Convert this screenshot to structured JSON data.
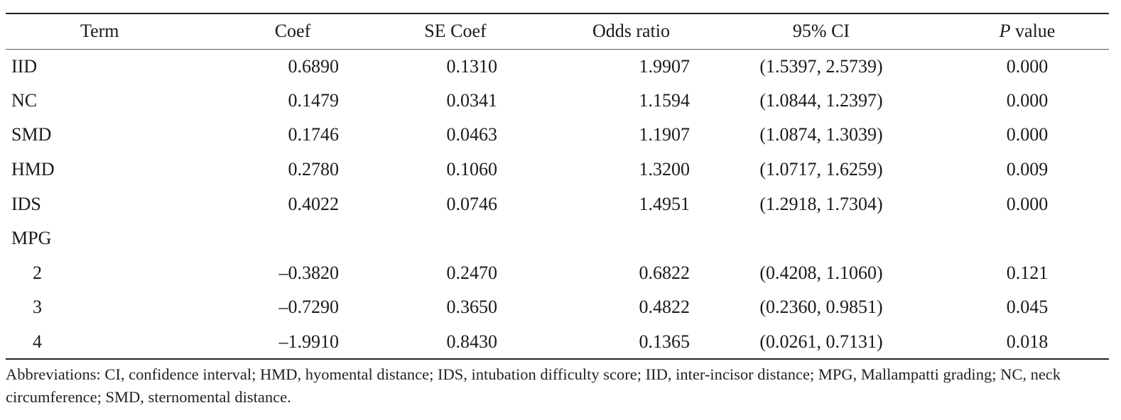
{
  "table": {
    "headers": {
      "term": "Term",
      "coef": "Coef",
      "se_coef": "SE Coef",
      "odds_ratio": "Odds ratio",
      "ci": "95% CI",
      "p_italic": "P",
      "p_rest": " value"
    },
    "rows": [
      {
        "term": "IID",
        "coef": "0.6890",
        "se": "0.1310",
        "or": "1.9907",
        "ci": "(1.5397, 2.5739)",
        "p": "0.000"
      },
      {
        "term": "NC",
        "coef": "0.1479",
        "se": "0.0341",
        "or": "1.1594",
        "ci": "(1.0844, 1.2397)",
        "p": "0.000"
      },
      {
        "term": "SMD",
        "coef": "0.1746",
        "se": "0.0463",
        "or": "1.1907",
        "ci": "(1.0874, 1.3039)",
        "p": "0.000"
      },
      {
        "term": "HMD",
        "coef": "0.2780",
        "se": "0.1060",
        "or": "1.3200",
        "ci": "(1.0717, 1.6259)",
        "p": "0.009"
      },
      {
        "term": "IDS",
        "coef": "0.4022",
        "se": "0.0746",
        "or": "1.4951",
        "ci": "(1.2918, 1.7304)",
        "p": "0.000"
      },
      {
        "term": "MPG",
        "coef": "",
        "se": "",
        "or": "",
        "ci": "",
        "p": ""
      },
      {
        "term": "2",
        "coef": "–0.3820",
        "se": "0.2470",
        "or": "0.6822",
        "ci": "(0.4208, 1.1060)",
        "p": "0.121"
      },
      {
        "term": "3",
        "coef": "–0.7290",
        "se": "0.3650",
        "or": "0.4822",
        "ci": "(0.2360, 0.9851)",
        "p": "0.045"
      },
      {
        "term": "4",
        "coef": "–1.9910",
        "se": "0.8430",
        "or": "0.1365",
        "ci": "(0.0261, 0.7131)",
        "p": "0.018"
      }
    ]
  },
  "footnote": "Abbreviations: CI, confidence interval; HMD, hyomental distance; IDS, intubation difficulty score; IID, inter-incisor distance; MPG, Mallampatti grading; NC, neck circumference; SMD, sternomental distance."
}
